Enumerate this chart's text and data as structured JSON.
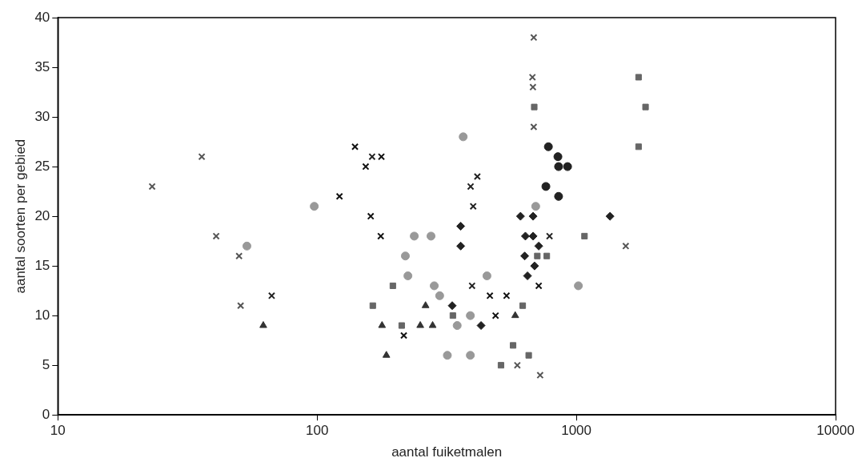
{
  "chart_data": {
    "type": "scatter",
    "xlabel": "aantal fuiketmalen",
    "ylabel": "aantal soorten per gebied",
    "log": "x",
    "xlim": [
      10,
      10000
    ],
    "xticks": [
      10,
      100,
      1000,
      10000
    ],
    "ylim": [
      0,
      40
    ],
    "yticks": [
      0,
      5,
      10,
      15,
      20,
      25,
      30,
      35,
      40
    ],
    "grid": false,
    "legend": false,
    "series": [
      {
        "marker": "cross",
        "color": "#555555",
        "x": [
          23.1,
          35.9,
          40.8,
          50,
          50.7,
          685,
          677,
          680,
          685,
          592,
          725,
          1551
        ],
        "values": [
          23,
          26,
          18,
          16,
          11,
          38,
          34,
          33,
          29,
          5,
          4,
          17
        ]
      },
      {
        "marker": "cross",
        "color": "#111111",
        "x": [
          140,
          177,
          154,
          122,
          161,
          176,
          216,
          464,
          538,
          488,
          716
        ],
        "values": [
          27,
          26,
          25,
          22,
          20,
          18,
          8,
          12,
          12,
          10,
          13
        ]
      },
      {
        "marker": "cross",
        "color": "#222222",
        "x": [
          66.8,
          163,
          415,
          391,
          400,
          396,
          788
        ],
        "values": [
          12,
          26,
          24,
          23,
          21,
          13,
          18
        ]
      },
      {
        "marker": "circle",
        "color": "#222222",
        "x": [
          780,
          849,
          854,
          925,
          763,
          854
        ],
        "values": [
          27,
          26,
          25,
          25,
          23,
          22
        ]
      },
      {
        "marker": "diamond",
        "color": "#222222",
        "x": [
          358,
          358,
          609,
          681,
          636,
          681,
          716,
          632,
          648,
          690,
          332,
          429,
          1349
        ],
        "values": [
          19,
          17,
          20,
          20,
          18,
          18,
          17,
          16,
          14,
          15,
          11,
          9,
          20
        ]
      },
      {
        "marker": "square",
        "color": "#666666",
        "x": [
          196,
          164,
          212,
          334,
          769,
          1075,
          621,
          707,
          570,
          512,
          655,
          1738,
          1849,
          688,
          1738
        ],
        "values": [
          13,
          11,
          9,
          10,
          16,
          18,
          11,
          16,
          7,
          5,
          6,
          34,
          31,
          31,
          27
        ]
      },
      {
        "marker": "triangle",
        "color": "#333333",
        "x": [
          62,
          185,
          178,
          262,
          250,
          279,
          581
        ],
        "values": [
          9,
          6,
          9,
          11,
          9,
          9,
          10
        ]
      },
      {
        "marker": "circle",
        "color": "#999999",
        "x": [
          97.5,
          53.6,
          275,
          224,
          697,
          219,
          297,
          347,
          390,
          452,
          318,
          390,
          366,
          237,
          283,
          1018
        ],
        "values": [
          21,
          17,
          18,
          14,
          21,
          16,
          12,
          9,
          10,
          14,
          6,
          6,
          28,
          18,
          13,
          13
        ]
      }
    ]
  }
}
